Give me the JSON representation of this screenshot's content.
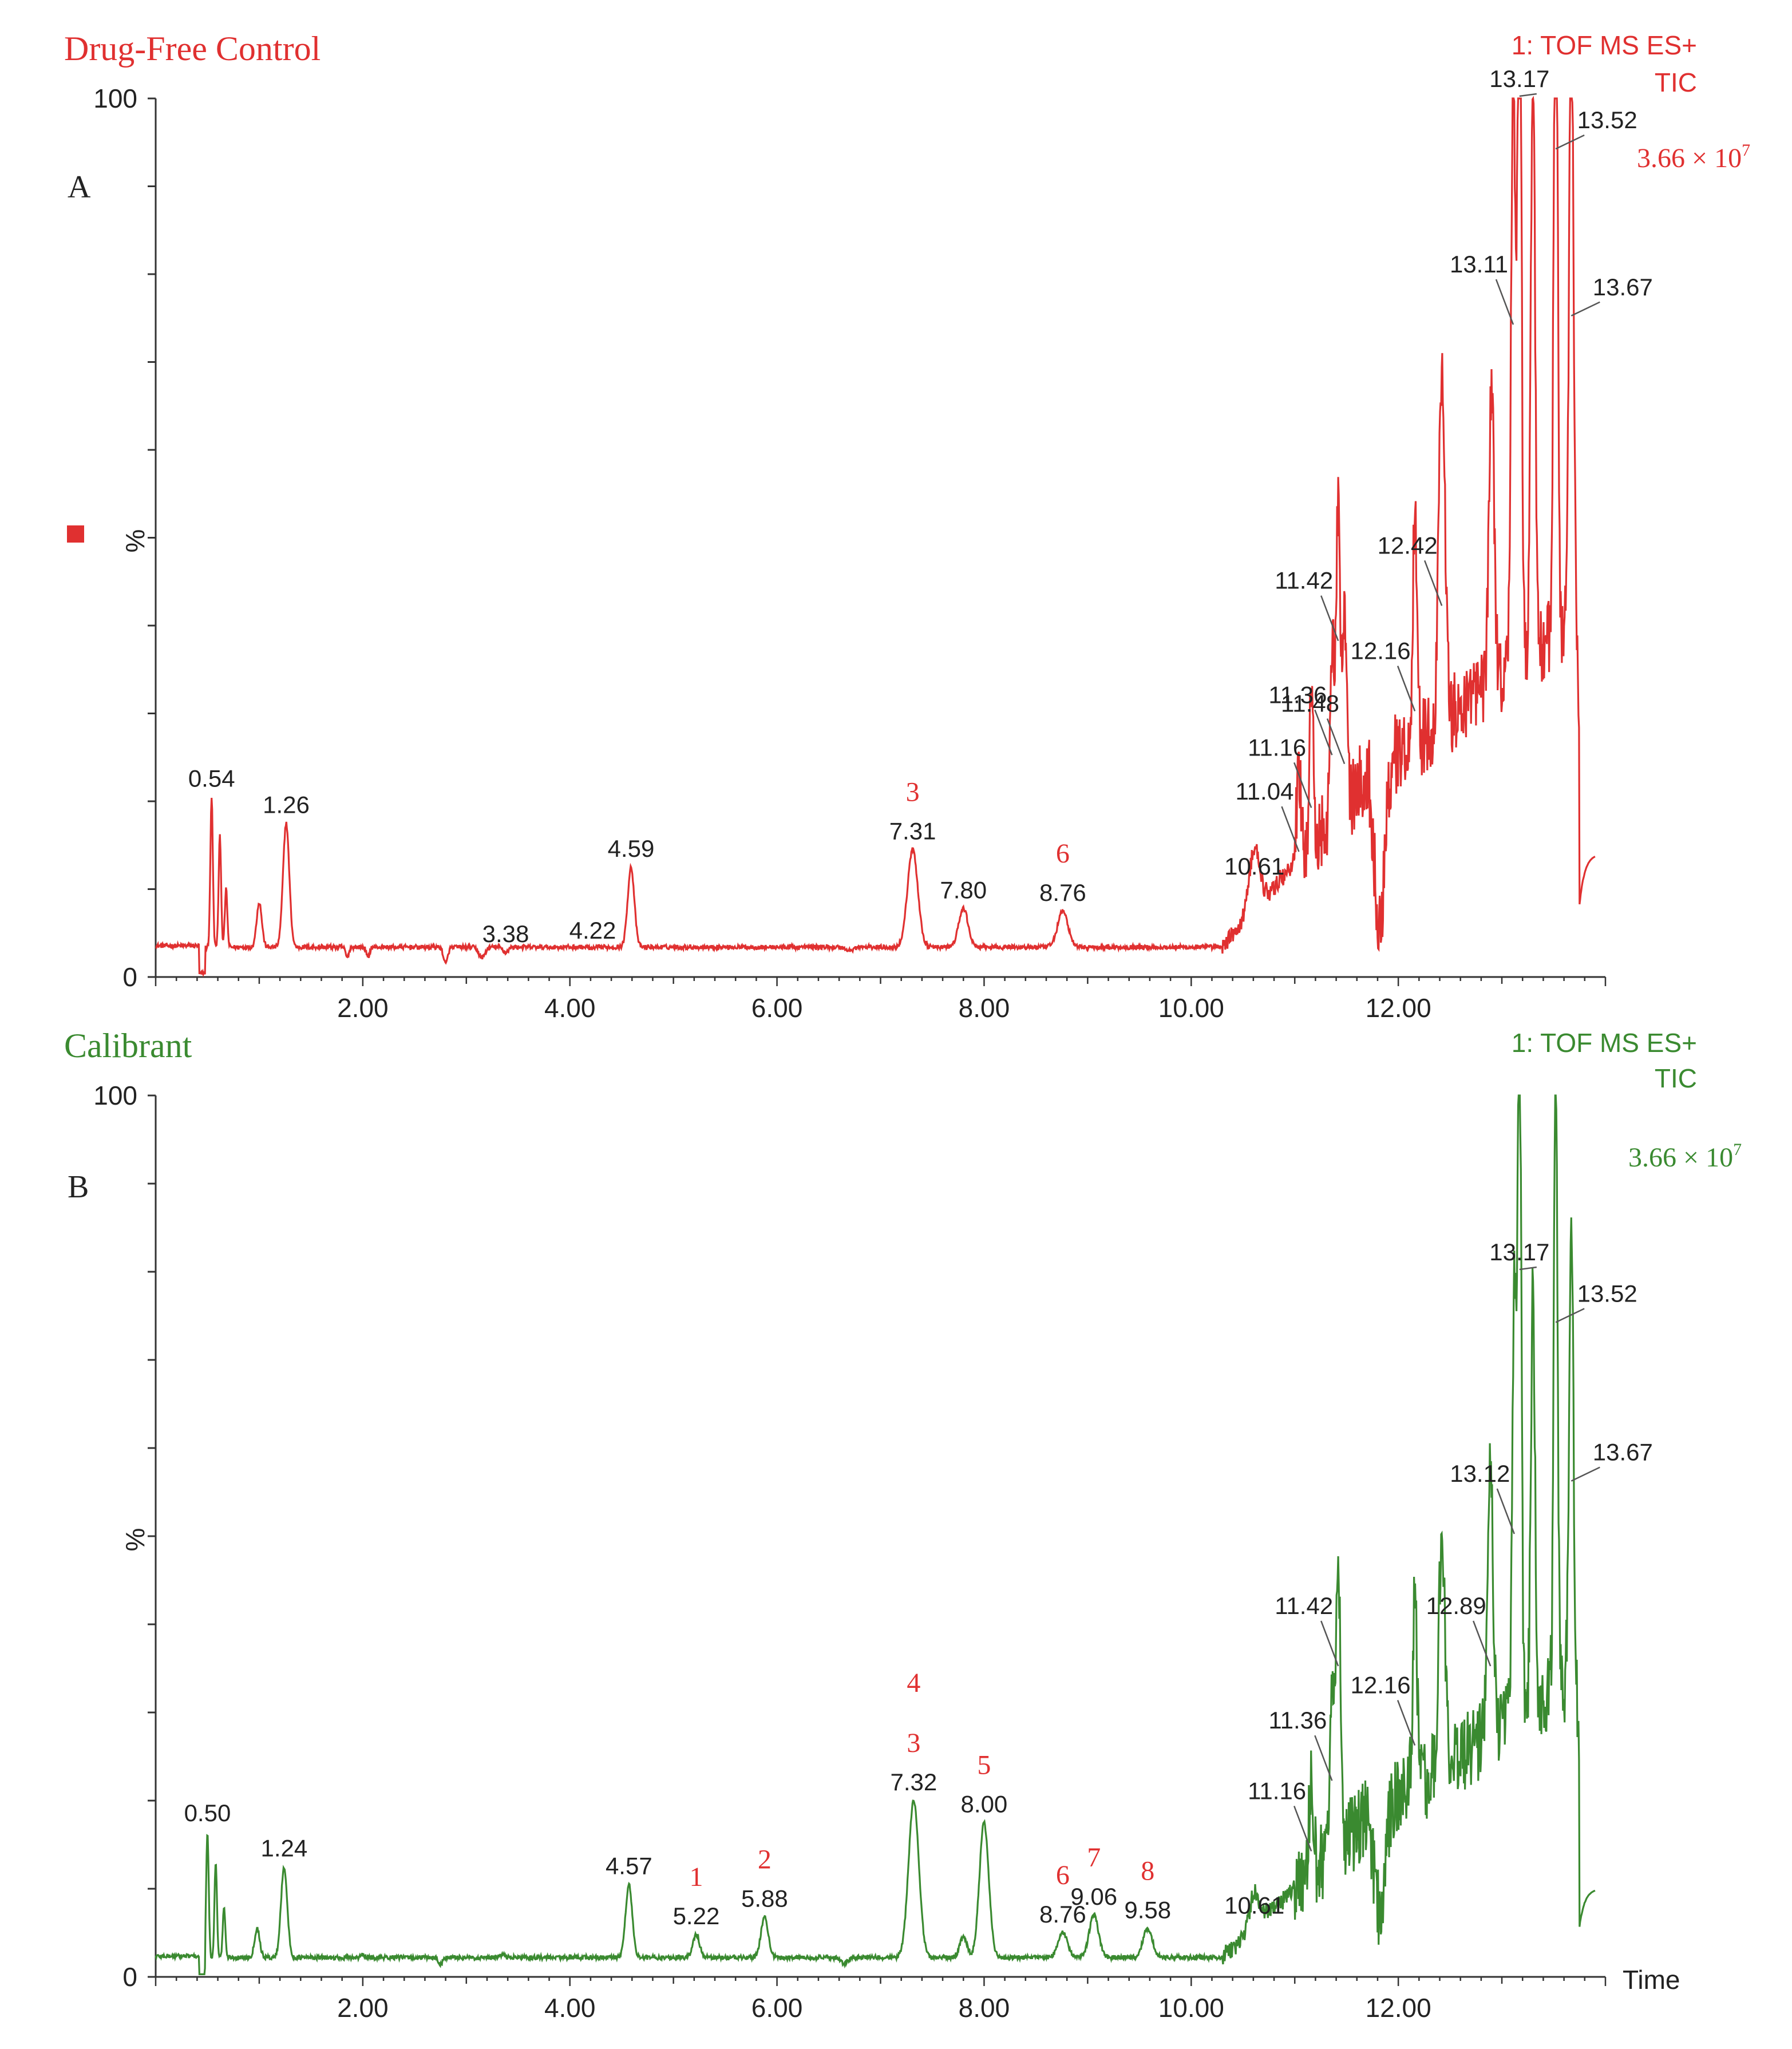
{
  "chart_data": [
    {
      "panel_letter": "A",
      "title": "Drug-Free Control",
      "type": "line",
      "color": "#e03030",
      "instrument": "1: TOF MS ES+",
      "trace": "TIC",
      "intensity_prefix": "3.66 × 10",
      "intensity_exp": "7",
      "xlim": [
        0,
        14
      ],
      "ylim": [
        0,
        100
      ],
      "ylabel": "%",
      "xticks": [
        "2.00",
        "4.00",
        "6.00",
        "8.00",
        "10.00",
        "12.00"
      ],
      "ytick_top": "100",
      "ytick_bottom": "0",
      "baseline": 3.4,
      "peaks": [
        {
          "x": 0.54,
          "y": 20.5,
          "w": 0.012,
          "label": "0.54"
        },
        {
          "x": 0.62,
          "y": 16,
          "w": 0.012
        },
        {
          "x": 0.68,
          "y": 10,
          "w": 0.012
        },
        {
          "x": 1.0,
          "y": 8.5,
          "w": 0.025
        },
        {
          "x": 1.26,
          "y": 17.5,
          "w": 0.03,
          "label": "1.26"
        },
        {
          "x": 1.85,
          "y": 2.2,
          "w": 0.015
        },
        {
          "x": 2.05,
          "y": 2.2,
          "w": 0.015
        },
        {
          "x": 2.8,
          "y": 1.5,
          "w": 0.02
        },
        {
          "x": 3.15,
          "y": 2.2,
          "w": 0.03
        },
        {
          "x": 3.38,
          "y": 2.8,
          "w": 0.025,
          "label": "3.38"
        },
        {
          "x": 4.22,
          "y": 3.2,
          "w": 0.025,
          "label": "4.22"
        },
        {
          "x": 4.59,
          "y": 12.5,
          "w": 0.032,
          "label": "4.59"
        },
        {
          "x": 6.7,
          "y": 3.0,
          "w": 0.035
        },
        {
          "x": 7.31,
          "y": 14.5,
          "w": 0.05,
          "label": "7.31",
          "compound": "3"
        },
        {
          "x": 7.8,
          "y": 7.8,
          "w": 0.045,
          "label": "7.80"
        },
        {
          "x": 8.76,
          "y": 7.5,
          "w": 0.05,
          "label": "8.76",
          "compound": "6"
        },
        {
          "x": 10.61,
          "y": 10.5,
          "w": 0.05,
          "label": "10.61"
        },
        {
          "x": 11.04,
          "y": 14.0,
          "w": 0.02,
          "label": "11.04"
        },
        {
          "x": 11.16,
          "y": 19.0,
          "w": 0.02,
          "label": "11.16"
        },
        {
          "x": 11.36,
          "y": 25.0,
          "w": 0.02,
          "label": "11.36"
        },
        {
          "x": 11.42,
          "y": 38.0,
          "w": 0.02,
          "label": "11.42"
        },
        {
          "x": 11.48,
          "y": 24.0,
          "w": 0.02,
          "label": "11.48"
        },
        {
          "x": 12.16,
          "y": 30.0,
          "w": 0.02,
          "label": "12.16"
        },
        {
          "x": 12.42,
          "y": 42.0,
          "w": 0.03,
          "label": "12.42"
        },
        {
          "x": 12.9,
          "y": 38.0,
          "w": 0.025
        },
        {
          "x": 13.11,
          "y": 74.0,
          "w": 0.02,
          "label": "13.11"
        },
        {
          "x": 13.17,
          "y": 100.0,
          "w": 0.018,
          "label": "13.17"
        },
        {
          "x": 13.3,
          "y": 72.0,
          "w": 0.02
        },
        {
          "x": 13.52,
          "y": 94.0,
          "w": 0.018,
          "label": "13.52"
        },
        {
          "x": 13.67,
          "y": 75.0,
          "w": 0.02,
          "label": "13.67"
        }
      ]
    },
    {
      "panel_letter": "B",
      "title": "Calibrant",
      "type": "line",
      "color": "#3a8a30",
      "instrument": "1: TOF MS ES+",
      "trace": "TIC",
      "intensity_prefix": "3.66 × 10",
      "intensity_exp": "7",
      "xlim": [
        0,
        14
      ],
      "ylim": [
        0,
        100
      ],
      "ylabel": "%",
      "xlabel": "Time",
      "xticks": [
        "2.00",
        "4.00",
        "6.00",
        "8.00",
        "10.00",
        "12.00"
      ],
      "ytick_top": "100",
      "ytick_bottom": "0",
      "baseline": 2.2,
      "peaks": [
        {
          "x": 0.5,
          "y": 16.5,
          "w": 0.012,
          "label": "0.50"
        },
        {
          "x": 0.58,
          "y": 13,
          "w": 0.012
        },
        {
          "x": 0.66,
          "y": 8,
          "w": 0.012
        },
        {
          "x": 0.98,
          "y": 5.5,
          "w": 0.025
        },
        {
          "x": 1.24,
          "y": 12.5,
          "w": 0.03,
          "label": "1.24"
        },
        {
          "x": 1.8,
          "y": 2.0,
          "w": 0.015
        },
        {
          "x": 2.0,
          "y": 2.5,
          "w": 0.015
        },
        {
          "x": 2.75,
          "y": 1.4,
          "w": 0.02
        },
        {
          "x": 3.1,
          "y": 2.0,
          "w": 0.03
        },
        {
          "x": 3.35,
          "y": 2.5,
          "w": 0.025
        },
        {
          "x": 4.57,
          "y": 10.5,
          "w": 0.032,
          "label": "4.57"
        },
        {
          "x": 5.22,
          "y": 4.8,
          "w": 0.032,
          "label": "5.22",
          "compound": "1"
        },
        {
          "x": 5.88,
          "y": 6.8,
          "w": 0.035,
          "label": "5.88",
          "compound": "2"
        },
        {
          "x": 6.65,
          "y": 1.5,
          "w": 0.035
        },
        {
          "x": 7.32,
          "y": 20.0,
          "w": 0.05,
          "label": "7.32",
          "compound": "3",
          "compound2": "4"
        },
        {
          "x": 7.8,
          "y": 4.5,
          "w": 0.035
        },
        {
          "x": 8.0,
          "y": 17.5,
          "w": 0.045,
          "label": "8.00",
          "compound": "5"
        },
        {
          "x": 8.76,
          "y": 5.0,
          "w": 0.045,
          "label": "8.76",
          "compound": "6"
        },
        {
          "x": 9.06,
          "y": 7.0,
          "w": 0.045,
          "label": "9.06",
          "compound": "7"
        },
        {
          "x": 9.58,
          "y": 5.5,
          "w": 0.045,
          "label": "9.58",
          "compound": "8"
        },
        {
          "x": 10.61,
          "y": 6.0,
          "w": 0.05,
          "label": "10.61"
        },
        {
          "x": 11.16,
          "y": 14.0,
          "w": 0.02,
          "label": "11.16"
        },
        {
          "x": 11.36,
          "y": 22.0,
          "w": 0.02,
          "label": "11.36"
        },
        {
          "x": 11.42,
          "y": 35.0,
          "w": 0.02,
          "label": "11.42"
        },
        {
          "x": 12.16,
          "y": 26.0,
          "w": 0.02,
          "label": "12.16"
        },
        {
          "x": 12.42,
          "y": 28.0,
          "w": 0.03
        },
        {
          "x": 12.89,
          "y": 35.0,
          "w": 0.025,
          "label": "12.89"
        },
        {
          "x": 13.12,
          "y": 50.0,
          "w": 0.02,
          "label": "13.12"
        },
        {
          "x": 13.17,
          "y": 80.0,
          "w": 0.018,
          "label": "13.17"
        },
        {
          "x": 13.3,
          "y": 50.0,
          "w": 0.02
        },
        {
          "x": 13.52,
          "y": 74.0,
          "w": 0.018,
          "label": "13.52"
        },
        {
          "x": 13.67,
          "y": 56.0,
          "w": 0.02,
          "label": "13.67"
        }
      ]
    }
  ]
}
